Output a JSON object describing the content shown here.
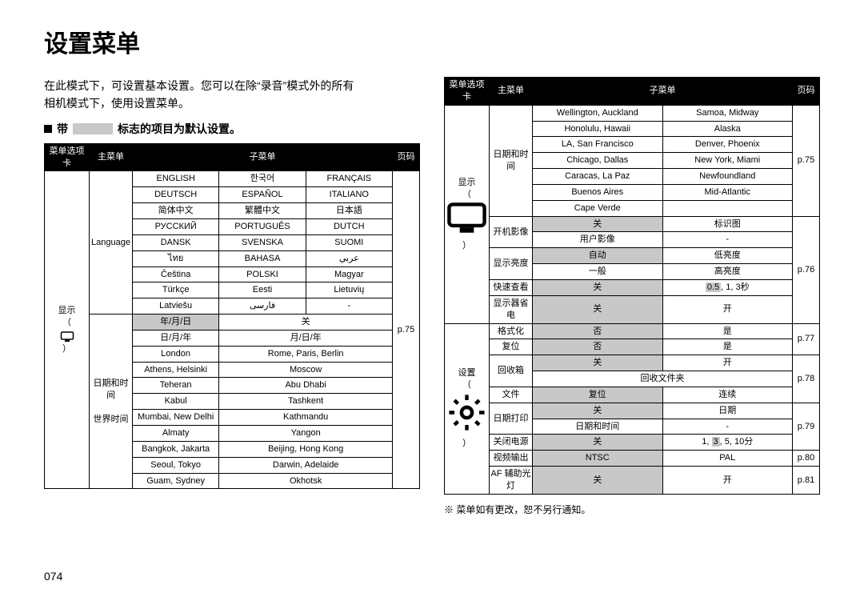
{
  "meta": {
    "page_number": "074"
  },
  "title": "设置菜单",
  "intro_line1": "在此模式下，可设置基本设置。您可以在除“录音”模式外的所有",
  "intro_line2": "相机模式下，使用设置菜单。",
  "legend": {
    "square_glyph": "■",
    "prefix": "带",
    "suffix": "标志的项目为默认设置。"
  },
  "headers": {
    "tab": "菜单选项卡",
    "main": "主菜单",
    "sub": "子菜单",
    "page": "页码"
  },
  "left_table": {
    "tab_label": "显示",
    "tab_sub": "（",
    "tab_sub_close": "）",
    "main1": "Language",
    "main2": "日期和时间",
    "main2_sub": "世界时间",
    "page_ref": "p.75",
    "lang_rows": [
      [
        "ENGLISH",
        "한국어",
        "FRANÇAIS"
      ],
      [
        "DEUTSCH",
        "ESPAÑOL",
        "ITALIANO"
      ],
      [
        "简体中文",
        "繁體中文",
        "日本語"
      ],
      [
        "РУССКИЙ",
        "PORTUGUÊS",
        "DUTCH"
      ],
      [
        "DANSK",
        "SVENSKA",
        "SUOMI"
      ],
      [
        "ไทย",
        "BAHASA",
        "عربي"
      ],
      [
        "Čeština",
        "POLSKI",
        "Magyar"
      ],
      [
        "Türkçe",
        "Eesti",
        "Lietuvių"
      ],
      [
        "Latviešu",
        "فارسی",
        "-"
      ]
    ],
    "date_rows": [
      {
        "c1": "年/月/日",
        "c1_grey": true,
        "c2": "关",
        "c2_span": 2,
        "c2_grey": false
      },
      {
        "c1": "日/月/年",
        "c1_grey": false,
        "c2": "月/日/年",
        "c2_span": 2,
        "c2_grey": false
      }
    ],
    "world_rows": [
      [
        "London",
        "Rome, Paris, Berlin"
      ],
      [
        "Athens, Helsinki",
        "Moscow"
      ],
      [
        "Teheran",
        "Abu Dhabi"
      ],
      [
        "Kabul",
        "Tashkent"
      ],
      [
        "Mumbai, New Delhi",
        "Kathmandu"
      ],
      [
        "Almaty",
        "Yangon"
      ],
      [
        "Bangkok, Jakarta",
        "Beijing, Hong Kong"
      ],
      [
        "Seoul, Tokyo",
        "Darwin, Adelaide"
      ],
      [
        "Guam, Sydney",
        "Okhotsk"
      ]
    ]
  },
  "right_table": {
    "tab1": {
      "label": "显示",
      "sub": "（",
      "sub_close": "）"
    },
    "tab2": {
      "label": "设置",
      "sub": "（",
      "sub_close": "）"
    },
    "footnote": "※  菜单如有更改，恕不另行通知。",
    "body": [
      {
        "tab": "display",
        "main": "日期和时间",
        "sub": "世界时间",
        "c1": "Wellington, Auckland",
        "c2": "Samoa, Midway",
        "page": "p.75"
      },
      {
        "c1": "Honolulu, Hawaii",
        "c2": "Alaska"
      },
      {
        "c1": "LA, San Francisco",
        "c2": "Denver, Phoenix"
      },
      {
        "c1": "Chicago, Dallas",
        "c2": "New York, Miami"
      },
      {
        "c1": "Caracas, La Paz",
        "c2": "Newfoundland"
      },
      {
        "c1": "Buenos Aires",
        "c2": "Mid-Atlantic"
      },
      {
        "c1": "Cape Verde",
        "c2": ""
      },
      {
        "main": "开机影像",
        "c1": "关",
        "c1_grey": true,
        "c2": "标识图",
        "page": "p.76"
      },
      {
        "c1": "用户影像",
        "c2": "-"
      },
      {
        "main": "显示亮度",
        "c1": "自动",
        "c1_grey": true,
        "c2": "低亮度"
      },
      {
        "c1": "一般",
        "c2": "高亮度"
      },
      {
        "main": "快速查看",
        "c1": "关",
        "c1_grey": true,
        "c2": "0.5, 1, 3秒",
        "c2_highlight": "0.5"
      },
      {
        "main": "显示器省电",
        "c1": "关",
        "c1_grey": true,
        "c2": "开"
      },
      {
        "tab": "settings",
        "main": "格式化",
        "c1": "否",
        "c1_grey": true,
        "c2": "是",
        "page": "p.77"
      },
      {
        "main": "复位",
        "c1": "否",
        "c1_grey": true,
        "c2": "是"
      },
      {
        "main": "回收箱",
        "c1": "关",
        "c1_grey": true,
        "c2": "开",
        "page": "p.78"
      },
      {
        "c1": "回收文件夹",
        "c2": "",
        "c1_span": 2
      },
      {
        "main": "文件",
        "c1": "复位",
        "c1_grey": true,
        "c2": "连续"
      },
      {
        "main": "日期打印",
        "c1": "关",
        "c1_grey": true,
        "c2": "日期",
        "page": "p.79"
      },
      {
        "c1": "日期和时间",
        "c2": "-"
      },
      {
        "main": "关闭电源",
        "c1": "关",
        "c1_grey": true,
        "c2": "1, 3, 5, 10分",
        "c2_highlight": "3"
      },
      {
        "main": "视频输出",
        "c1": "NTSC",
        "c1_grey": true,
        "c2": "PAL",
        "page": "p.80"
      },
      {
        "main": "AF 辅助光灯",
        "c1": "关",
        "c1_grey": true,
        "c2": "开",
        "page": "p.81"
      }
    ]
  }
}
